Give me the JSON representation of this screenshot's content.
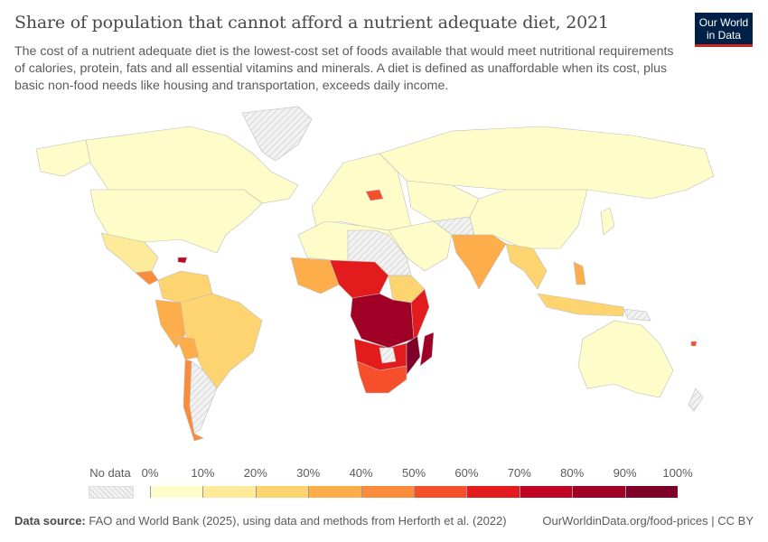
{
  "header": {
    "title": "Share of population that cannot afford a nutrient adequate diet, 2021",
    "subtitle": "The cost of a nutrient adequate diet is the lowest-cost set of foods available that would meet nutritional requirements of calories, protein, fats and all essential vitamins and minerals. A diet is defined as unaffordable when its cost, plus basic non-food needs like housing and transportation, exceeds daily income.",
    "logo": "Our World in Data"
  },
  "legend": {
    "no_data_label": "No data",
    "ticks": [
      "0%",
      "10%",
      "20%",
      "30%",
      "40%",
      "50%",
      "60%",
      "70%",
      "80%",
      "90%",
      "100%"
    ],
    "colors": [
      "#fefdc9",
      "#feeb9a",
      "#fdd470",
      "#fdae4a",
      "#fb8c3c",
      "#f64f2b",
      "#e31b1c",
      "#c00426",
      "#a00025",
      "#7e0029"
    ],
    "no_data_color": "#e8e8e8"
  },
  "footer": {
    "source_label": "Data source:",
    "source_text": "FAO and World Bank (2025), using data and methods from Herforth et al. (2022)",
    "url_license": "OurWorldinData.org/food-prices | CC BY"
  },
  "chart_data": {
    "type": "choropleth",
    "year": 2021,
    "scale": {
      "min": 0,
      "max": 100,
      "unit": "%",
      "bin_width": 10
    }
  }
}
